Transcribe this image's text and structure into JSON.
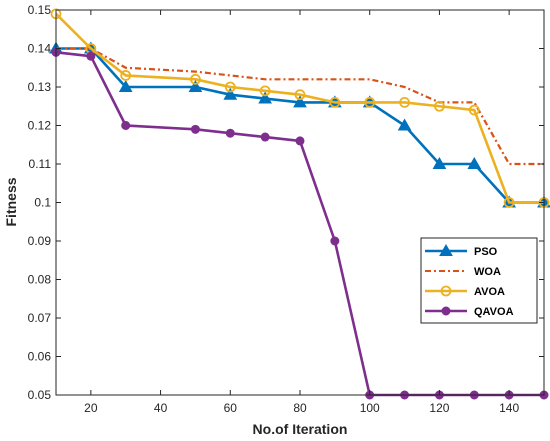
{
  "chart_data": {
    "type": "line",
    "title": "",
    "xlabel": "No.of Iteration",
    "ylabel": "Fitness",
    "xlim": [
      10,
      150
    ],
    "ylim": [
      0.05,
      0.15
    ],
    "xticks": [
      20,
      40,
      60,
      80,
      100,
      120,
      140
    ],
    "yticks": [
      0.05,
      0.06,
      0.07,
      0.08,
      0.09,
      0.1,
      0.11,
      0.12,
      0.13,
      0.14,
      0.15
    ],
    "ytick_labels": [
      "0.05",
      "0.06",
      "0.07",
      "0.08",
      "0.09",
      "0.1",
      "0.11",
      "0.12",
      "0.13",
      "0.14",
      "0.15"
    ],
    "grid": false,
    "legend_position": "right",
    "series": [
      {
        "name": "PSO",
        "color": "#0072BD",
        "marker": "triangle",
        "dash": "solid",
        "x": [
          10,
          20,
          30,
          50,
          60,
          70,
          80,
          90,
          100,
          110,
          120,
          130,
          140,
          150
        ],
        "y": [
          0.14,
          0.14,
          0.13,
          0.13,
          0.128,
          0.127,
          0.126,
          0.126,
          0.126,
          0.12,
          0.11,
          0.11,
          0.1,
          0.1
        ]
      },
      {
        "name": "WOA",
        "color": "#D95319",
        "marker": "none",
        "dash": "dashdot",
        "x": [
          10,
          20,
          30,
          40,
          50,
          60,
          70,
          80,
          90,
          100,
          110,
          120,
          130,
          140,
          150
        ],
        "y": [
          0.14,
          0.14,
          0.135,
          0.1345,
          0.134,
          0.133,
          0.132,
          0.132,
          0.132,
          0.132,
          0.13,
          0.126,
          0.126,
          0.11,
          0.11
        ]
      },
      {
        "name": "AVOA",
        "color": "#EDB120",
        "marker": "circle-open",
        "dash": "solid",
        "x": [
          10,
          20,
          30,
          50,
          60,
          70,
          80,
          90,
          100,
          110,
          120,
          130,
          140,
          150
        ],
        "y": [
          0.149,
          0.14,
          0.133,
          0.132,
          0.13,
          0.129,
          0.128,
          0.126,
          0.126,
          0.126,
          0.125,
          0.124,
          0.1,
          0.1
        ]
      },
      {
        "name": "QAVOA",
        "color": "#7E2F8E",
        "marker": "circle-filled",
        "dash": "solid",
        "x": [
          10,
          20,
          30,
          50,
          60,
          70,
          80,
          90,
          100,
          110,
          120,
          130,
          140,
          150
        ],
        "y": [
          0.139,
          0.138,
          0.12,
          0.119,
          0.118,
          0.117,
          0.116,
          0.09,
          0.05,
          0.05,
          0.05,
          0.05,
          0.05,
          0.05
        ]
      }
    ]
  }
}
